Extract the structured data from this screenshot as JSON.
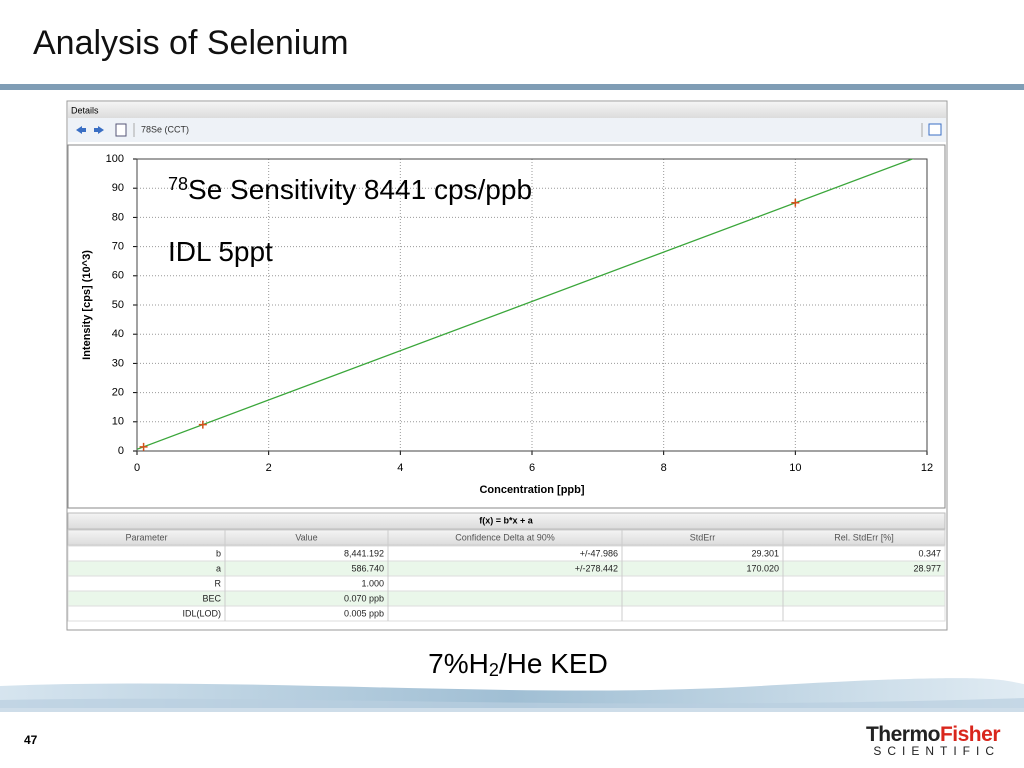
{
  "title": "Analysis of Selenium",
  "panel": {
    "header": "Details",
    "tab": "78Se (CCT)"
  },
  "chart_data": {
    "type": "scatter",
    "annotations": [
      {
        "superscript": "78",
        "text": "Se Sensitivity 8441 cps/ppb"
      },
      {
        "text": "IDL 5ppt"
      }
    ],
    "x_label": "Concentration [ppb]",
    "y_label": "Intensity [cps] (10^3)",
    "xlim": [
      0,
      12
    ],
    "xticks": [
      0,
      2,
      4,
      6,
      8,
      10,
      12
    ],
    "ylim": [
      0,
      100
    ],
    "yticks": [
      0,
      10,
      20,
      30,
      40,
      50,
      60,
      70,
      80,
      90,
      100
    ],
    "grid": true,
    "series": [
      {
        "mode": "line",
        "color": "#3aa63a",
        "x": [
          0,
          12
        ],
        "values": [
          0.587,
          101.88
        ]
      },
      {
        "mode": "markers",
        "color": "#d4501a",
        "x": [
          0.1,
          1,
          10
        ],
        "values": [
          1.43,
          9.03,
          85.0
        ]
      }
    ]
  },
  "table": {
    "formula": "f(x) = b*x + a",
    "columns": [
      "Parameter",
      "Value",
      "Confidence Delta at 90%",
      "StdErr",
      "Rel. StdErr [%]"
    ],
    "rows": [
      [
        "b",
        "8,441.192",
        "+/-47.986",
        "29.301",
        "0.347"
      ],
      [
        "a",
        "586.740",
        "+/-278.442",
        "170.020",
        "28.977"
      ],
      [
        "R",
        "1.000",
        null,
        null,
        null
      ],
      [
        "BEC",
        "0.070 ppb",
        null,
        null,
        null
      ],
      [
        "IDL(LOD)",
        "0.005 ppb",
        null,
        null,
        null
      ]
    ]
  },
  "caption": {
    "before": "7%H",
    "subscript": "2",
    "after": "/He KED"
  },
  "footer": {
    "page": "47",
    "logo_a": "Thermo",
    "logo_b": "Fisher",
    "logo_sub": "SCIENTIFIC"
  }
}
